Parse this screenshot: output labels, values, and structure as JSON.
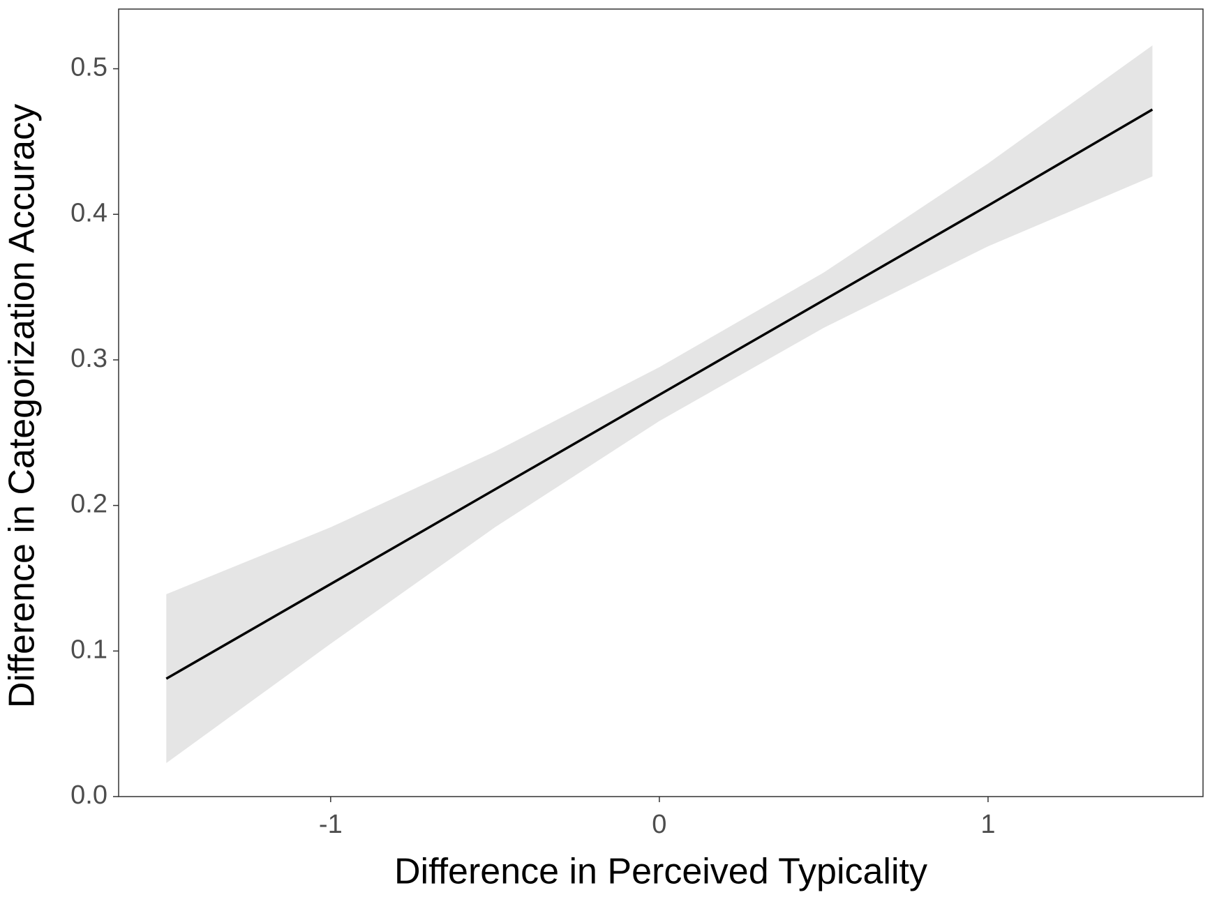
{
  "chart_data": {
    "type": "line",
    "x_label": "Difference in Perceived Typicality",
    "y_label": "Difference in Categorization Accuracy",
    "x": [
      -1.5,
      -1,
      -0.5,
      0,
      0.5,
      1,
      1.5
    ],
    "series": [
      {
        "color": "#000000",
        "values": [
          0.081,
          0.146,
          0.211,
          0.276,
          0.341,
          0.406,
          0.472
        ],
        "band": {
          "color": "#e5e5e5",
          "upper": [
            0.139,
            0.185,
            0.237,
            0.295,
            0.36,
            0.435,
            0.516
          ],
          "lower": [
            0.023,
            0.105,
            0.185,
            0.258,
            0.322,
            0.378,
            0.426
          ]
        }
      }
    ],
    "xlim": [
      -1.645,
      1.654
    ],
    "ylim": [
      0,
      0.541
    ],
    "xticks": [
      -1,
      0,
      1
    ],
    "yticks": [
      {
        "value": 0,
        "label": "0.0"
      },
      0.1,
      0.2,
      0.3,
      0.4,
      0.5
    ]
  }
}
